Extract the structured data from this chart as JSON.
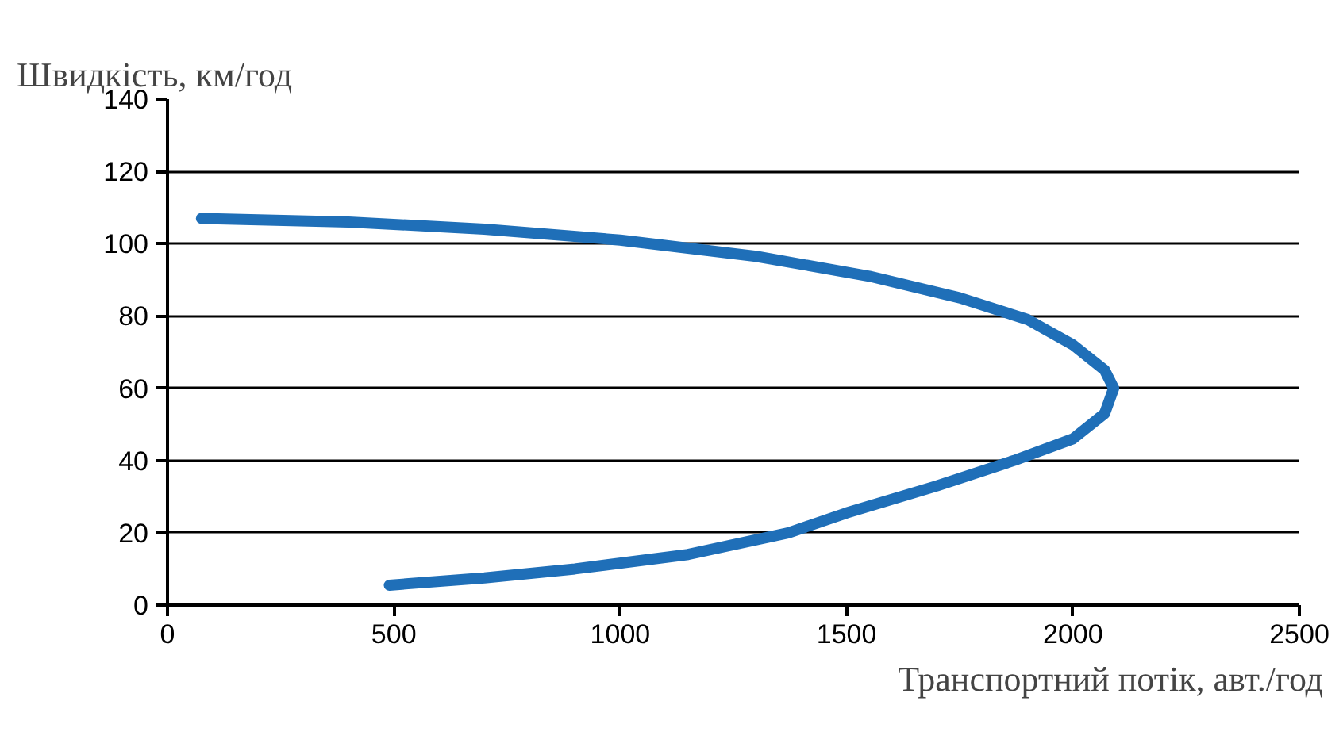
{
  "chart_data": {
    "type": "line",
    "ylabel": "Швидкість, км/год",
    "xlabel": "Транспортний потік, авт./год",
    "xlim": [
      0,
      2500
    ],
    "xticks": [
      0,
      500,
      1000,
      1500,
      2000,
      2500
    ],
    "ylim": [
      0,
      140
    ],
    "yticks": [
      0,
      20,
      40,
      60,
      80,
      100,
      120,
      140
    ],
    "grid": "y",
    "series": [
      {
        "color": "#1f6fb8",
        "x": [
          75,
          400,
          700,
          1000,
          1300,
          1550,
          1750,
          1900,
          2000,
          2070,
          2090,
          2070,
          2000,
          1870,
          1700,
          1500,
          1372,
          1150,
          900,
          700,
          490
        ],
        "values": [
          107,
          106,
          104,
          101,
          96.5,
          91,
          85,
          79,
          72,
          65,
          60,
          53,
          46,
          40,
          33,
          25.5,
          20,
          14,
          10,
          7.5,
          5.5
        ]
      }
    ]
  }
}
